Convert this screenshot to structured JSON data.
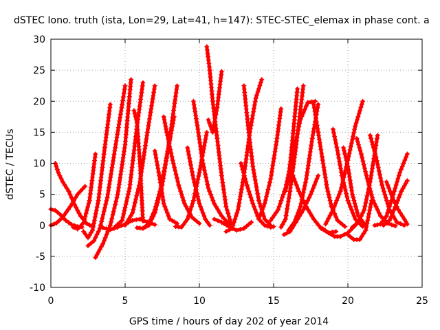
{
  "chart_data": {
    "type": "scatter",
    "title": "dSTEC Iono. truth (ista, Lon=29, Lat=41, h=147): STEC-STEC_elemax in phase cont. a",
    "xlabel": "GPS time / hours of day 202 of year 2014",
    "ylabel": "dSTEC  / TECUs",
    "xlim": [
      0,
      25
    ],
    "ylim": [
      -10,
      30
    ],
    "x_ticks": [
      0,
      5,
      10,
      15,
      20,
      25
    ],
    "y_ticks": [
      -10,
      -5,
      0,
      5,
      10,
      15,
      20,
      25,
      30
    ],
    "grid": true,
    "marker": "+",
    "color": "#ff0000",
    "series": [
      {
        "x": [
          0.0,
          0.3,
          0.6,
          1.0,
          1.4,
          1.8,
          2.1
        ],
        "y": [
          2.6,
          2.4,
          1.8,
          0.8,
          0.1,
          -0.2,
          -0.3
        ]
      },
      {
        "x": [
          0.0,
          0.4,
          0.8,
          1.3,
          1.8,
          2.3
        ],
        "y": [
          0.0,
          0.4,
          1.3,
          3.0,
          5.0,
          6.3
        ]
      },
      {
        "x": [
          0.3,
          0.5,
          0.8,
          1.2,
          1.6,
          2.0,
          2.4,
          2.8
        ],
        "y": [
          10.0,
          8.5,
          7.0,
          5.5,
          3.3,
          1.5,
          0.3,
          -0.2
        ]
      },
      {
        "x": [
          1.5,
          1.8,
          2.2,
          2.6,
          3.0
        ],
        "y": [
          -0.3,
          -0.6,
          0.4,
          4.0,
          11.5
        ]
      },
      {
        "x": [
          2.2,
          2.5,
          2.8,
          3.2,
          3.6,
          4.0
        ],
        "y": [
          -1.0,
          -2.0,
          -0.8,
          4.0,
          12.0,
          19.5
        ]
      },
      {
        "x": [
          2.5,
          2.9,
          3.3,
          3.8,
          4.3,
          4.8,
          5.0
        ],
        "y": [
          -3.3,
          -2.5,
          -0.5,
          4.5,
          12.0,
          19.5,
          22.5
        ]
      },
      {
        "x": [
          3.0,
          3.5,
          4.0,
          4.5,
          5.0,
          5.4
        ],
        "y": [
          -5.2,
          -3.0,
          0.0,
          5.0,
          13.0,
          23.5
        ]
      },
      {
        "x": [
          3.5,
          4.0,
          4.5,
          5.0,
          5.5,
          6.0,
          6.5,
          7.0
        ],
        "y": [
          -0.4,
          -0.7,
          -0.3,
          0.2,
          0.8,
          1.0,
          0.5,
          0.1
        ]
      },
      {
        "x": [
          4.3,
          4.8,
          5.3,
          5.8,
          6.2
        ],
        "y": [
          -0.3,
          0.8,
          6.0,
          16.0,
          23.0
        ]
      },
      {
        "x": [
          5.0,
          5.5,
          6.0,
          6.5,
          7.0
        ],
        "y": [
          0.0,
          2.0,
          7.0,
          15.0,
          22.5
        ]
      },
      {
        "x": [
          5.6,
          5.8,
          6.0,
          6.2
        ],
        "y": [
          18.5,
          16.5,
          10.0,
          0.7
        ]
      },
      {
        "x": [
          5.8,
          6.2,
          6.6,
          7.0,
          7.5,
          8.0,
          8.5
        ],
        "y": [
          -0.4,
          -0.5,
          0.0,
          2.0,
          6.5,
          14.0,
          22.5
        ]
      },
      {
        "x": [
          6.3,
          6.6,
          7.0,
          7.4,
          7.8,
          8.3
        ],
        "y": [
          -0.3,
          0.3,
          2.5,
          6.0,
          11.0,
          17.5
        ]
      },
      {
        "x": [
          7.0,
          7.3,
          7.6,
          8.0,
          8.5
        ],
        "y": [
          12.0,
          8.0,
          3.5,
          1.0,
          0.3
        ]
      },
      {
        "x": [
          7.6,
          7.8,
          8.2,
          8.6,
          9.0,
          9.5,
          10.0
        ],
        "y": [
          17.5,
          15.0,
          10.5,
          6.5,
          3.5,
          1.3,
          0.3
        ]
      },
      {
        "x": [
          8.4,
          8.8,
          9.2,
          9.6,
          10.0,
          10.5
        ],
        "y": [
          -0.2,
          -0.3,
          1.0,
          4.0,
          8.5,
          15.0
        ]
      },
      {
        "x": [
          9.2,
          9.6,
          10.0,
          10.4,
          10.7
        ],
        "y": [
          12.5,
          7.5,
          3.5,
          1.0,
          0.0
        ]
      },
      {
        "x": [
          9.6,
          9.9,
          10.2,
          10.6,
          11.0,
          11.5,
          12.0
        ],
        "y": [
          20.0,
          15.5,
          10.5,
          6.0,
          3.5,
          1.5,
          0.2
        ]
      },
      {
        "x": [
          10.5,
          10.7,
          10.9,
          11.2,
          11.5,
          11.8,
          12.2
        ],
        "y": [
          28.8,
          25.0,
          20.0,
          14.0,
          8.0,
          3.0,
          -0.2
        ]
      },
      {
        "x": [
          10.6,
          10.9,
          11.2,
          11.5
        ],
        "y": [
          17.0,
          15.0,
          19.0,
          24.8
        ]
      },
      {
        "x": [
          11.0,
          11.5,
          12.0,
          12.5,
          13.0,
          13.5
        ],
        "y": [
          1.0,
          0.5,
          -0.2,
          -0.8,
          -0.5,
          0.5
        ]
      },
      {
        "x": [
          11.8,
          12.2,
          12.6,
          13.0,
          13.4,
          13.8,
          14.2
        ],
        "y": [
          -1.0,
          -0.5,
          2.5,
          8.0,
          15.0,
          20.5,
          23.5
        ]
      },
      {
        "x": [
          12.8,
          13.2,
          13.6,
          14.0,
          14.4,
          14.8,
          15.0
        ],
        "y": [
          10.0,
          6.5,
          3.5,
          1.0,
          0.0,
          -0.3,
          -0.2
        ]
      },
      {
        "x": [
          13.0,
          13.3,
          13.6,
          14.0,
          14.4,
          14.8
        ],
        "y": [
          22.5,
          15.5,
          9.5,
          4.0,
          1.0,
          0.0
        ]
      },
      {
        "x": [
          14.0,
          14.4,
          14.8,
          15.2,
          15.5
        ],
        "y": [
          1.0,
          3.5,
          7.5,
          13.5,
          18.8
        ]
      },
      {
        "x": [
          14.8,
          15.3,
          15.8,
          16.3,
          16.8,
          17.3,
          17.8
        ],
        "y": [
          0.8,
          2.5,
          6.0,
          11.5,
          17.0,
          19.8,
          20.0
        ]
      },
      {
        "x": [
          15.5,
          15.8,
          16.1,
          16.5,
          17.0
        ],
        "y": [
          -0.3,
          1.0,
          5.5,
          12.5,
          22.5
        ]
      },
      {
        "x": [
          15.7,
          16.1,
          16.5,
          17.0,
          17.5,
          18.0
        ],
        "y": [
          -1.5,
          -1.0,
          0.5,
          2.5,
          5.0,
          8.0
        ]
      },
      {
        "x": [
          16.0,
          16.4,
          16.8,
          17.2,
          17.6,
          18.0
        ],
        "y": [
          -0.8,
          0.5,
          3.0,
          7.5,
          14.0,
          19.5
        ]
      },
      {
        "x": [
          16.6,
          16.4,
          16.2,
          16.0,
          15.8
        ],
        "y": [
          22.0,
          17.0,
          12.0,
          7.5,
          5.5
        ]
      },
      {
        "x": [
          16.3,
          16.7,
          17.2,
          17.7,
          18.2,
          18.7,
          19.2
        ],
        "y": [
          8.0,
          5.5,
          3.0,
          1.0,
          -0.5,
          -1.2,
          -1.0
        ]
      },
      {
        "x": [
          17.7,
          18.0,
          18.3,
          18.6,
          18.9,
          19.3,
          19.8
        ],
        "y": [
          19.5,
          15.0,
          10.5,
          6.0,
          3.0,
          0.8,
          -0.2
        ]
      },
      {
        "x": [
          18.3,
          18.7,
          19.1,
          19.5,
          20.0,
          20.5
        ],
        "y": [
          -0.5,
          -1.2,
          -1.8,
          -1.8,
          -1.2,
          0.0
        ]
      },
      {
        "x": [
          18.5,
          19.0,
          19.5,
          20.0,
          20.5,
          21.0
        ],
        "y": [
          0.2,
          2.5,
          5.5,
          10.5,
          16.0,
          20.0
        ]
      },
      {
        "x": [
          19.0,
          19.3,
          19.6,
          20.0,
          20.5,
          21.0
        ],
        "y": [
          15.5,
          12.0,
          8.0,
          4.0,
          1.0,
          -0.2
        ]
      },
      {
        "x": [
          19.7,
          20.0,
          20.3,
          20.7,
          21.2
        ],
        "y": [
          12.5,
          9.5,
          5.0,
          1.5,
          0.0
        ]
      },
      {
        "x": [
          20.0,
          20.4,
          20.8,
          21.2,
          21.6
        ],
        "y": [
          -1.5,
          -2.3,
          -2.3,
          -0.8,
          4.0
        ]
      },
      {
        "x": [
          20.3,
          20.7,
          21.1,
          21.5,
          22.0
        ],
        "y": [
          -0.3,
          0.5,
          2.5,
          7.0,
          14.5
        ]
      },
      {
        "x": [
          20.6,
          20.9,
          21.3,
          21.7,
          22.2,
          22.7,
          23.2
        ],
        "y": [
          14.0,
          11.5,
          7.5,
          4.0,
          1.5,
          0.3,
          -0.1
        ]
      },
      {
        "x": [
          21.5,
          21.9,
          22.3,
          22.8,
          23.3,
          23.8
        ],
        "y": [
          14.5,
          11.0,
          6.5,
          2.5,
          0.5,
          0.0
        ]
      },
      {
        "x": [
          21.8,
          22.2,
          22.6,
          23.0,
          23.5,
          24.0
        ],
        "y": [
          0.0,
          0.2,
          1.5,
          4.5,
          8.5,
          11.5
        ]
      },
      {
        "x": [
          22.4,
          22.8,
          23.2,
          23.6,
          24.0
        ],
        "y": [
          0.0,
          0.8,
          3.0,
          5.5,
          7.2
        ]
      },
      {
        "x": [
          22.6,
          23.0,
          23.4,
          23.8,
          24.0
        ],
        "y": [
          7.0,
          4.5,
          2.5,
          1.0,
          0.2
        ]
      }
    ]
  }
}
